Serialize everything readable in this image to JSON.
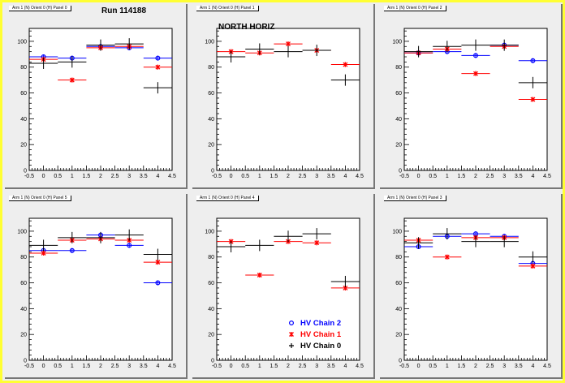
{
  "header": {
    "run_label": "Run 114188",
    "side_label": "NORTH HORIZ"
  },
  "legend": [
    {
      "label": "HV Chain 2",
      "color": "#0000ff",
      "marker": "circle"
    },
    {
      "label": "HV Chain 1",
      "color": "#ff0000",
      "marker": "star"
    },
    {
      "label": "HV Chain 0",
      "color": "#000000",
      "marker": "plus"
    }
  ],
  "chart_data": [
    {
      "type": "scatter",
      "title": "Arm 1 (N) Orient 0 (H) Panel 0",
      "xlim": [
        -0.5,
        4.5
      ],
      "ylim": [
        0,
        110
      ],
      "xticks": [
        -0.5,
        0,
        0.5,
        1,
        1.5,
        2,
        2.5,
        3,
        3.5,
        4,
        4.5
      ],
      "yticks": [
        0,
        20,
        40,
        60,
        80,
        100
      ],
      "series": [
        {
          "name": "HV Chain 2",
          "x": [
            0,
            1,
            2,
            3,
            4
          ],
          "y": [
            88,
            87,
            96,
            95,
            87
          ]
        },
        {
          "name": "HV Chain 1",
          "x": [
            0,
            1,
            2,
            3,
            4
          ],
          "y": [
            86,
            70,
            95,
            96,
            80
          ]
        },
        {
          "name": "HV Chain 0",
          "x": [
            0,
            1,
            2,
            3,
            4
          ],
          "y": [
            83,
            84,
            97,
            98,
            64
          ]
        }
      ]
    },
    {
      "type": "scatter",
      "title": "Arm 1 (N) Orient 0 (H) Panel 1",
      "xlim": [
        -0.5,
        4.5
      ],
      "ylim": [
        0,
        110
      ],
      "xticks": [
        -0.5,
        0,
        0.5,
        1,
        1.5,
        2,
        2.5,
        3,
        3.5,
        4,
        4.5
      ],
      "yticks": [
        0,
        20,
        40,
        60,
        80,
        100
      ],
      "series": [
        {
          "name": "HV Chain 1",
          "x": [
            0,
            1,
            2,
            3,
            4
          ],
          "y": [
            92,
            91,
            98,
            93,
            82
          ]
        },
        {
          "name": "HV Chain 0",
          "x": [
            0,
            1,
            2,
            3,
            4
          ],
          "y": [
            88,
            94,
            92,
            93,
            70
          ]
        }
      ]
    },
    {
      "type": "scatter",
      "title": "Arm 1 (N) Orient 0 (H) Panel 2",
      "xlim": [
        -0.5,
        4.5
      ],
      "ylim": [
        0,
        110
      ],
      "xticks": [
        -0.5,
        0,
        0.5,
        1,
        1.5,
        2,
        2.5,
        3,
        3.5,
        4,
        4.5
      ],
      "yticks": [
        0,
        20,
        40,
        60,
        80,
        100
      ],
      "series": [
        {
          "name": "HV Chain 2",
          "x": [
            0,
            1,
            2,
            3,
            4
          ],
          "y": [
            91,
            92,
            89,
            97,
            85
          ]
        },
        {
          "name": "HV Chain 1",
          "x": [
            0,
            1,
            2,
            3,
            4
          ],
          "y": [
            91,
            94,
            75,
            96,
            55
          ]
        },
        {
          "name": "HV Chain 0",
          "x": [
            0,
            1,
            2,
            3,
            4
          ],
          "y": [
            92,
            96,
            97,
            97,
            68
          ]
        }
      ]
    },
    {
      "type": "scatter",
      "title": "Arm 1 (N) Orient 0 (H) Panel 5",
      "xlim": [
        -0.5,
        4.5
      ],
      "ylim": [
        0,
        110
      ],
      "xticks": [
        -0.5,
        0,
        0.5,
        1,
        1.5,
        2,
        2.5,
        3,
        3.5,
        4,
        4.5
      ],
      "yticks": [
        0,
        20,
        40,
        60,
        80,
        100
      ],
      "series": [
        {
          "name": "HV Chain 2",
          "x": [
            0,
            1,
            2,
            3,
            4
          ],
          "y": [
            85,
            85,
            97,
            89,
            60
          ]
        },
        {
          "name": "HV Chain 1",
          "x": [
            0,
            1,
            2,
            3,
            4
          ],
          "y": [
            83,
            93,
            94,
            93,
            76
          ]
        },
        {
          "name": "HV Chain 0",
          "x": [
            0,
            1,
            2,
            3,
            4
          ],
          "y": [
            89,
            95,
            95,
            97,
            82
          ]
        }
      ]
    },
    {
      "type": "scatter",
      "title": "Arm 1 (N) Orient 0 (H) Panel 4",
      "xlim": [
        -0.5,
        4.5
      ],
      "ylim": [
        0,
        110
      ],
      "xticks": [
        -0.5,
        0,
        0.5,
        1,
        1.5,
        2,
        2.5,
        3,
        3.5,
        4,
        4.5
      ],
      "yticks": [
        0,
        20,
        40,
        60,
        80,
        100
      ],
      "series": [
        {
          "name": "HV Chain 1",
          "x": [
            0,
            1,
            2,
            3,
            4
          ],
          "y": [
            92,
            66,
            92,
            91,
            56
          ]
        },
        {
          "name": "HV Chain 0",
          "x": [
            0,
            1,
            2,
            3,
            4
          ],
          "y": [
            88,
            89,
            96,
            98,
            61
          ]
        }
      ]
    },
    {
      "type": "scatter",
      "title": "Arm 1 (N) Orient 0 (H) Panel 3",
      "xlim": [
        -0.5,
        4.5
      ],
      "ylim": [
        0,
        110
      ],
      "xticks": [
        -0.5,
        0,
        0.5,
        1,
        1.5,
        2,
        2.5,
        3,
        3.5,
        4,
        4.5
      ],
      "yticks": [
        0,
        20,
        40,
        60,
        80,
        100
      ],
      "series": [
        {
          "name": "HV Chain 2",
          "x": [
            0,
            1,
            2,
            3,
            4
          ],
          "y": [
            88,
            96,
            98,
            96,
            75
          ]
        },
        {
          "name": "HV Chain 1",
          "x": [
            0,
            1,
            2,
            3,
            4
          ],
          "y": [
            93,
            80,
            95,
            95,
            73
          ]
        },
        {
          "name": "HV Chain 0",
          "x": [
            0,
            1,
            2,
            3,
            4
          ],
          "y": [
            91,
            98,
            92,
            92,
            80
          ]
        }
      ]
    }
  ]
}
